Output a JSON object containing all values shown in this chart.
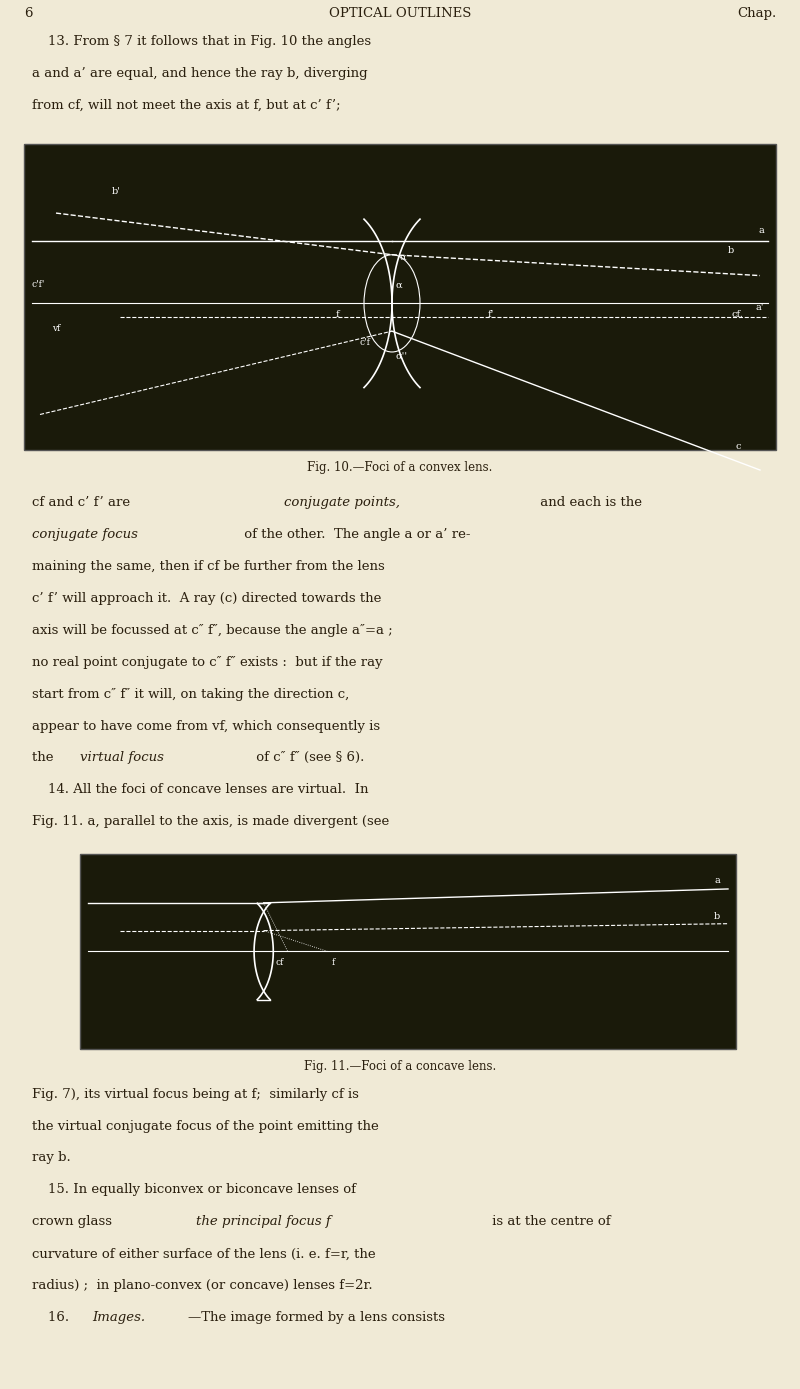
{
  "bg_color": "#f0ead6",
  "fig_bg_color": "#1a1a0e",
  "page_width": 8.0,
  "page_height": 13.89,
  "text_color": "#2a1f0e",
  "header_text": "OPTICAL OUTLINES           Chap.",
  "para1": "13. From § 7 it follows that in Fig. 10 the angles\na and a’ are equal, and hence the ray b, diverging\nfrom cf, will not meet the axis at f, but at c’ f’;",
  "caption1": "Fig. 10.—Foci of a convex lens.",
  "para2_line1": "cf and c’ f’ are ",
  "para2_line1_italic": "conjugate points,",
  "para2_line1_rest": " and each is the",
  "para2_line2": "conjugate focus",
  "para2_line2_rest": " of the other.  The angle a or a’ re-",
  "para2_line3": "maining the same, then if cf be further from the lens",
  "para2_line4": "c’ f’ will approach it.  A ray (c) directed towards the",
  "para2_line5": "axis will be focussed at c″ f″, because the angle a″=a ;",
  "para2_line6": "no real point conjugate to c″ f″ exists :  but if the ray",
  "para2_line7": "start from c″ f″ it will, on taking the direction c,",
  "para2_line8": "appear to have come from vf, which consequently is",
  "para2_line9": "the ",
  "para2_line9_italic": "virtual focus",
  "para2_line9_rest": " of c″ f″ (see § 6).",
  "para3": "14. All the foci of concave lenses are virtual.  In\nFig. 11. a, parallel to the axis, is made divergent (see",
  "caption2": "Fig. 11.—Foci of a concave lens.",
  "para4_line1": "Fig. 7), its virtual focus being at f;  similarly cf is",
  "para4_line2": "the virtual conjugate focus of the point emitting the",
  "para4_line3": "ray b.",
  "para5_line1": "15. In equally biconvex or biconcave lenses of",
  "para5_line2": "crown glass ",
  "para5_line2_italic": "the principal focus f",
  "para5_line2_rest": " is at the centre of",
  "para5_line3": "curvature of either surface of the lens (i. e. f=r, the",
  "para5_line4": "radius) ;  in plano-convex (or concave) lenses f=2r.",
  "para6": "16. Images.—The image formed by a lens consists"
}
